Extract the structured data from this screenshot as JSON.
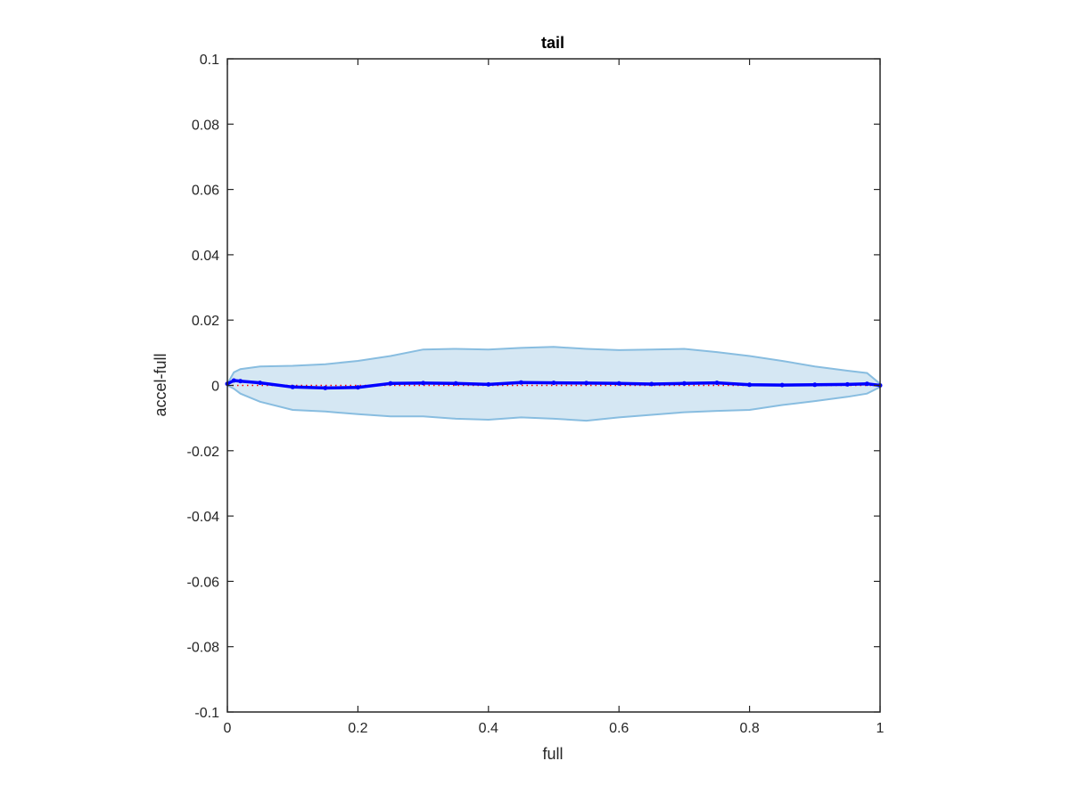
{
  "chart_data": {
    "type": "line",
    "title": "tail",
    "xlabel": "full",
    "ylabel": "accel-full",
    "xlim": [
      0,
      1
    ],
    "ylim": [
      -0.1,
      0.1
    ],
    "x_ticks": [
      0,
      0.2,
      0.4,
      0.6,
      0.8,
      1
    ],
    "x_tick_labels": [
      "0",
      "0.2",
      "0.4",
      "0.6",
      "0.8",
      "1"
    ],
    "y_ticks": [
      -0.1,
      -0.08,
      -0.06,
      -0.04,
      -0.02,
      0,
      0.02,
      0.04,
      0.06,
      0.08,
      0.1
    ],
    "y_tick_labels": [
      "-0.1",
      "-0.08",
      "-0.06",
      "-0.04",
      "-0.02",
      "0",
      "0.02",
      "0.04",
      "0.06",
      "0.08",
      "0.1"
    ],
    "grid": false,
    "colors": {
      "mean": "#0000ff",
      "band_fill": "#d5e7f3",
      "band_edge": "#88bde0",
      "reference": "#ff0000",
      "axes": "#262626"
    },
    "x": [
      0,
      0.01,
      0.02,
      0.05,
      0.1,
      0.15,
      0.2,
      0.25,
      0.3,
      0.35,
      0.4,
      0.45,
      0.5,
      0.55,
      0.6,
      0.65,
      0.7,
      0.75,
      0.8,
      0.85,
      0.9,
      0.95,
      0.98,
      1.0
    ],
    "series": [
      {
        "role": "mean",
        "values": [
          0.0005,
          0.0015,
          0.0013,
          0.0008,
          -0.0005,
          -0.0008,
          -0.0006,
          0.0006,
          0.0007,
          0.0006,
          0.0003,
          0.0009,
          0.0008,
          0.0007,
          0.0006,
          0.0004,
          0.0006,
          0.0008,
          0.0002,
          0.0001,
          0.0002,
          0.0003,
          0.0005,
          0.0
        ]
      },
      {
        "role": "upper",
        "values": [
          0.0005,
          0.004,
          0.005,
          0.0058,
          0.006,
          0.0065,
          0.0075,
          0.009,
          0.011,
          0.0112,
          0.011,
          0.0115,
          0.0118,
          0.0112,
          0.0108,
          0.011,
          0.0112,
          0.0102,
          0.009,
          0.0075,
          0.0058,
          0.0045,
          0.0038,
          0.0005
        ]
      },
      {
        "role": "lower",
        "values": [
          0.0,
          -0.001,
          -0.0025,
          -0.005,
          -0.0075,
          -0.008,
          -0.0088,
          -0.0095,
          -0.0095,
          -0.0102,
          -0.0105,
          -0.0098,
          -0.0102,
          -0.0108,
          -0.0098,
          -0.009,
          -0.0082,
          -0.0078,
          -0.0075,
          -0.006,
          -0.0048,
          -0.0035,
          -0.0025,
          -0.0005
        ]
      },
      {
        "role": "reference",
        "values": [
          0,
          0,
          0,
          0,
          0,
          0,
          0,
          0,
          0,
          0,
          0,
          0,
          0,
          0,
          0,
          0,
          0,
          0,
          0,
          0,
          0,
          0,
          0,
          0
        ]
      }
    ]
  }
}
